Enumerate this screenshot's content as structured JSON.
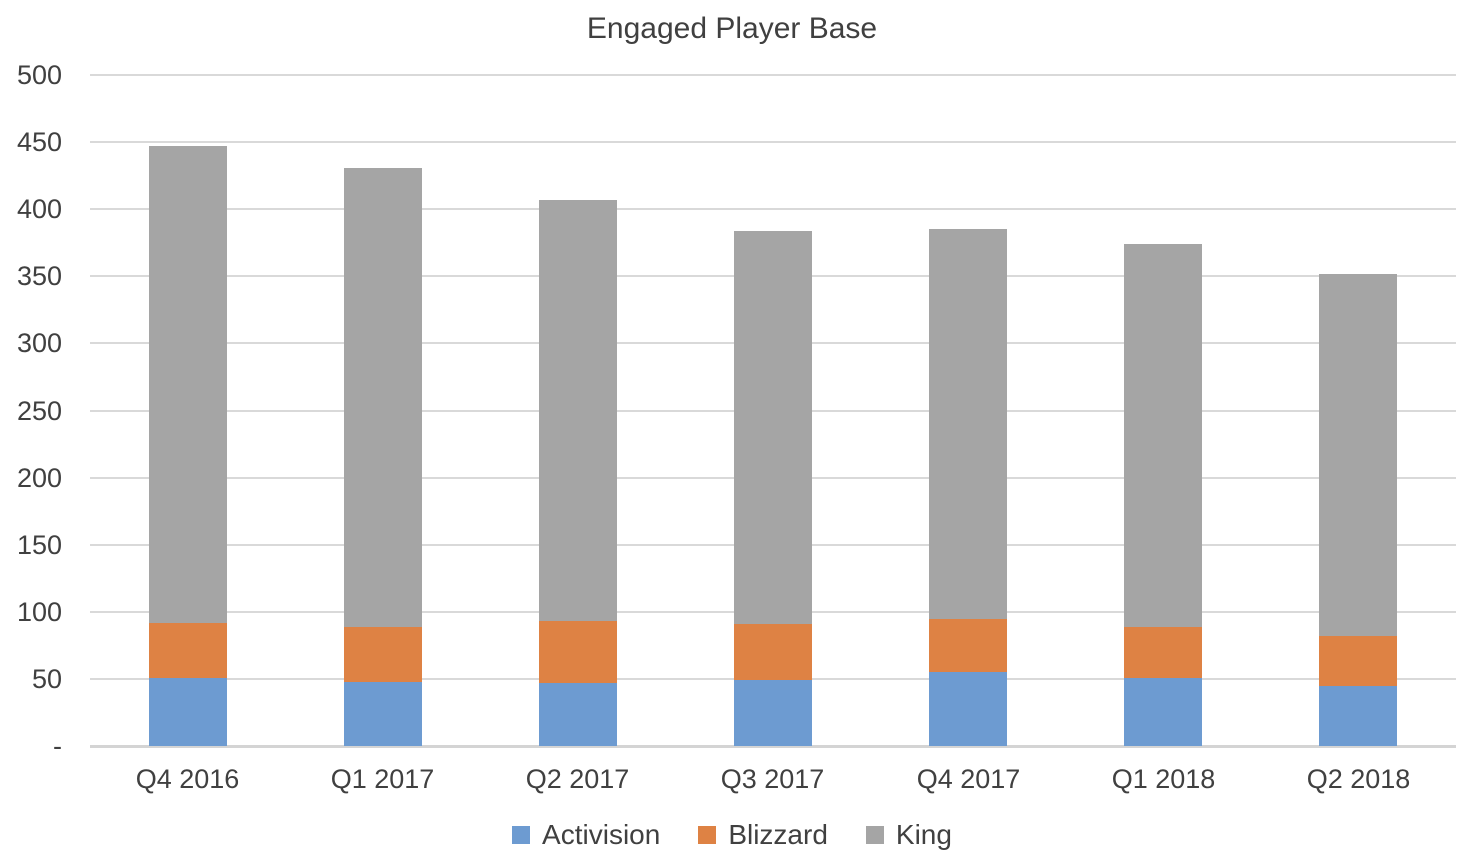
{
  "colors": {
    "activision": "#6D9BD1",
    "blizzard": "#DE8244",
    "king": "#A5A5A5",
    "gridline": "#D9D9D9",
    "axis_line": "#D4D4D4",
    "text": "#404040",
    "background": "#FFFFFF"
  },
  "chart_data": {
    "type": "bar",
    "stacked": true,
    "title": "Engaged Player Base",
    "xlabel": "",
    "ylabel": "",
    "categories": [
      "Q4 2016",
      "Q1 2017",
      "Q2 2017",
      "Q3 2017",
      "Q4 2017",
      "Q1 2018",
      "Q2 2018"
    ],
    "series": [
      {
        "name": "Activision",
        "color": "#6D9BD1",
        "values": [
          51,
          48,
          47,
          49,
          55,
          51,
          45
        ]
      },
      {
        "name": "Blizzard",
        "color": "#DE8244",
        "values": [
          41,
          41,
          46,
          42,
          40,
          38,
          37
        ]
      },
      {
        "name": "King",
        "color": "#A5A5A5",
        "values": [
          355,
          342,
          314,
          293,
          290,
          285,
          270
        ]
      }
    ],
    "ylim": [
      0,
      500
    ],
    "ytick_step": 50,
    "ytick_labels": [
      "-",
      "50",
      "100",
      "150",
      "200",
      "250",
      "300",
      "350",
      "400",
      "450",
      "500"
    ],
    "grid": "horizontal",
    "legend_position": "bottom",
    "legend_labels": [
      "Activision",
      "Blizzard",
      "King"
    ]
  }
}
